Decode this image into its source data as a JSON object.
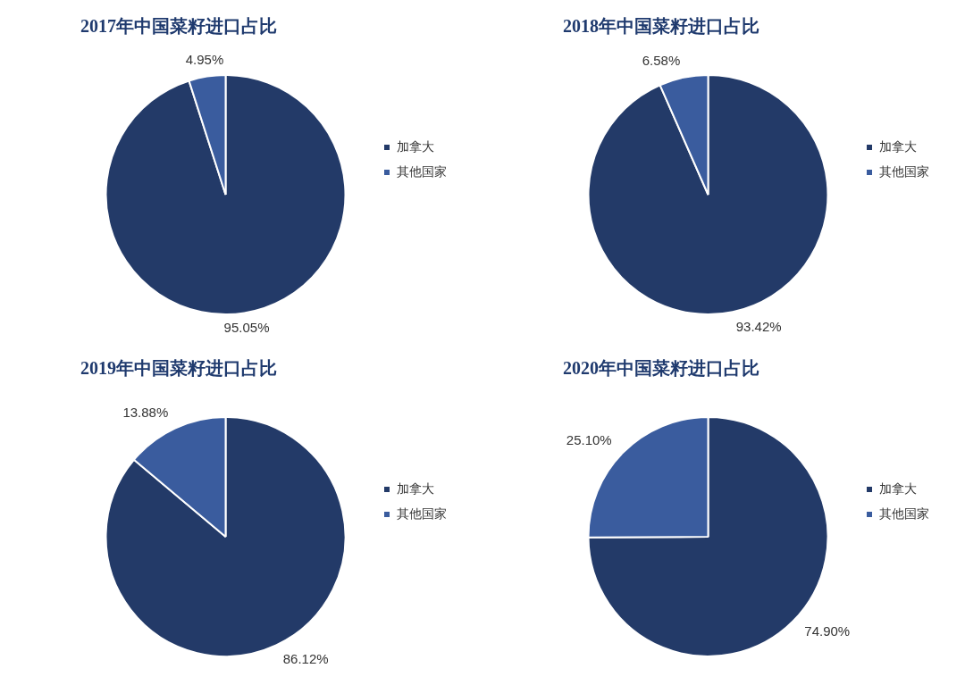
{
  "chart_data": [
    {
      "type": "pie",
      "title": "2017年中国菜籽进口占比",
      "categories": [
        "加拿大",
        "其他国家"
      ],
      "values": [
        95.05,
        4.95
      ],
      "colors": [
        "#233a68",
        "#3a5c9e"
      ],
      "value_labels": [
        "95.05%",
        "4.95%"
      ],
      "legend": "right"
    },
    {
      "type": "pie",
      "title": "2018年中国菜籽进口占比",
      "categories": [
        "加拿大",
        "其他国家"
      ],
      "values": [
        93.42,
        6.58
      ],
      "colors": [
        "#233a68",
        "#3a5c9e"
      ],
      "value_labels": [
        "93.42%",
        "6.58%"
      ],
      "legend": "right"
    },
    {
      "type": "pie",
      "title": "2019年中国菜籽进口占比",
      "categories": [
        "加拿大",
        "其他国家"
      ],
      "values": [
        86.12,
        13.88
      ],
      "colors": [
        "#233a68",
        "#3a5c9e"
      ],
      "value_labels": [
        "86.12%",
        "13.88%"
      ],
      "legend": "right"
    },
    {
      "type": "pie",
      "title": "2020年中国菜籽进口占比",
      "categories": [
        "加拿大",
        "其他国家"
      ],
      "values": [
        74.9,
        25.1
      ],
      "colors": [
        "#233a68",
        "#3a5c9e"
      ],
      "value_labels": [
        "74.90%",
        "25.10%"
      ],
      "legend": "right"
    }
  ]
}
